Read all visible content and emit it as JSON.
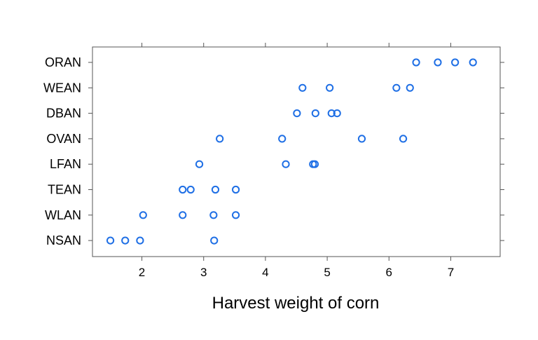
{
  "chart_data": {
    "type": "scatter",
    "title": "",
    "xlabel": "Harvest weight of corn",
    "ylabel": "",
    "xlim": [
      1.2,
      7.8
    ],
    "x_ticks": [
      2,
      3,
      4,
      5,
      6,
      7
    ],
    "categories": [
      "NSAN",
      "WLAN",
      "TEAN",
      "LFAN",
      "OVAN",
      "DBAN",
      "WEAN",
      "ORAN"
    ],
    "grid": false,
    "legend": "none",
    "marker": "open-circle",
    "marker_color": "#1f6fe5",
    "series": [
      {
        "points": [
          {
            "category": "NSAN",
            "x": 1.49
          },
          {
            "category": "NSAN",
            "x": 1.73
          },
          {
            "category": "NSAN",
            "x": 1.97
          },
          {
            "category": "NSAN",
            "x": 3.17
          },
          {
            "category": "WLAN",
            "x": 2.02
          },
          {
            "category": "WLAN",
            "x": 2.66
          },
          {
            "category": "WLAN",
            "x": 3.16
          },
          {
            "category": "WLAN",
            "x": 3.52
          },
          {
            "category": "TEAN",
            "x": 2.66
          },
          {
            "category": "TEAN",
            "x": 2.79
          },
          {
            "category": "TEAN",
            "x": 3.19
          },
          {
            "category": "TEAN",
            "x": 3.52
          },
          {
            "category": "LFAN",
            "x": 2.93
          },
          {
            "category": "LFAN",
            "x": 4.33
          },
          {
            "category": "LFAN",
            "x": 4.77
          },
          {
            "category": "LFAN",
            "x": 4.8
          },
          {
            "category": "OVAN",
            "x": 3.26
          },
          {
            "category": "OVAN",
            "x": 4.27
          },
          {
            "category": "OVAN",
            "x": 5.56
          },
          {
            "category": "OVAN",
            "x": 6.23
          },
          {
            "category": "DBAN",
            "x": 4.51
          },
          {
            "category": "DBAN",
            "x": 4.81
          },
          {
            "category": "DBAN",
            "x": 5.07
          },
          {
            "category": "DBAN",
            "x": 5.16
          },
          {
            "category": "WEAN",
            "x": 4.6
          },
          {
            "category": "WEAN",
            "x": 5.04
          },
          {
            "category": "WEAN",
            "x": 6.12
          },
          {
            "category": "WEAN",
            "x": 6.34
          },
          {
            "category": "ORAN",
            "x": 6.44
          },
          {
            "category": "ORAN",
            "x": 6.79
          },
          {
            "category": "ORAN",
            "x": 7.07
          },
          {
            "category": "ORAN",
            "x": 7.36
          }
        ]
      }
    ]
  }
}
